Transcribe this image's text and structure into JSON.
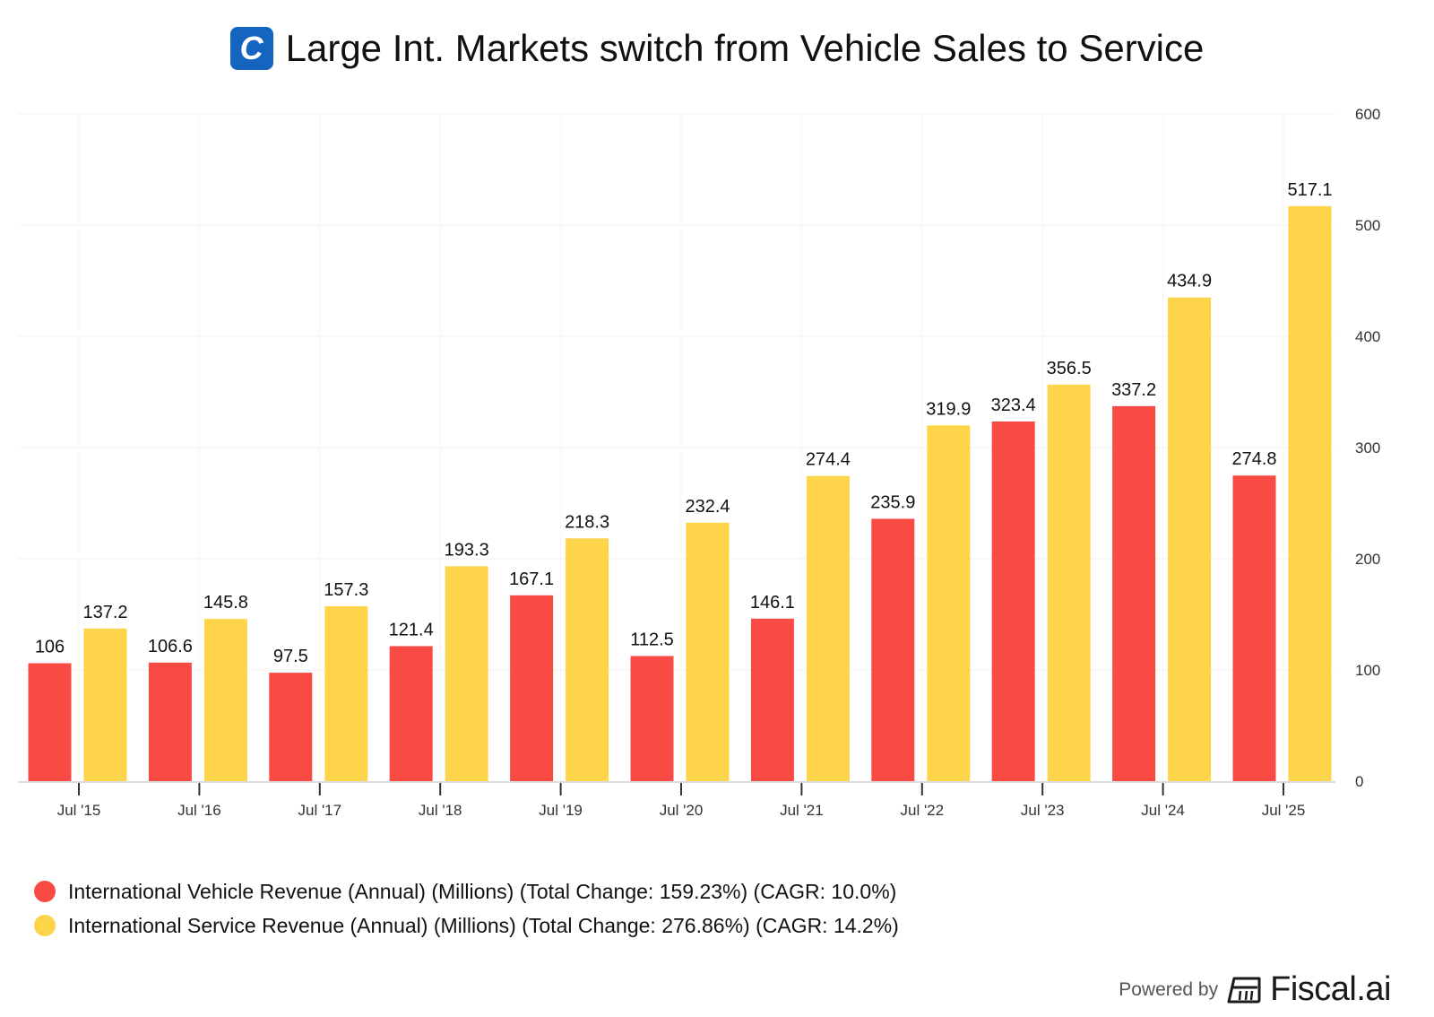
{
  "header": {
    "logo_letter": "C",
    "title": "Large Int. Markets switch from Vehicle Sales to Service"
  },
  "chart_data": {
    "type": "bar",
    "title": "Large Int. Markets switch from Vehicle Sales to Service",
    "xlabel": "",
    "ylabel": "",
    "categories": [
      "Jul '15",
      "Jul '16",
      "Jul '17",
      "Jul '18",
      "Jul '19",
      "Jul '20",
      "Jul '21",
      "Jul '22",
      "Jul '23",
      "Jul '24",
      "Jul '25"
    ],
    "series": [
      {
        "name": "International Vehicle Revenue (Annual) (Millions) (Total Change: 159.23%) (CAGR: 10.0%)",
        "color": "#f94b44",
        "values": [
          106,
          106.6,
          97.5,
          121.4,
          167.1,
          112.5,
          146.1,
          235.9,
          323.4,
          337.2,
          274.8
        ]
      },
      {
        "name": "International Service Revenue (Annual) (Millions) (Total Change: 276.86%) (CAGR: 14.2%)",
        "color": "#fdd44a",
        "values": [
          137.2,
          145.8,
          157.3,
          193.3,
          218.3,
          232.4,
          274.4,
          319.9,
          356.5,
          434.9,
          517.1
        ]
      }
    ],
    "yticks": [
      0,
      100,
      200,
      300,
      400,
      500,
      600
    ],
    "ylim": [
      0,
      600
    ],
    "y_axis_side": "right",
    "grid": true,
    "legend_position": "bottom-left"
  },
  "legend": [
    {
      "label": "International Vehicle Revenue (Annual) (Millions) (Total Change: 159.23%) (CAGR: 10.0%)",
      "color": "#f94b44"
    },
    {
      "label": "International Service Revenue (Annual) (Millions) (Total Change: 276.86%) (CAGR: 14.2%)",
      "color": "#fdd44a"
    }
  ],
  "footer": {
    "powered_by": "Powered by",
    "brand": "Fiscal.ai"
  }
}
